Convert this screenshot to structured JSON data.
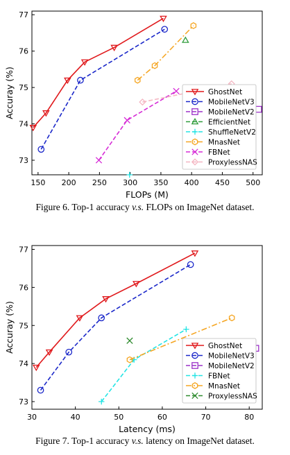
{
  "captions": {
    "fig6": {
      "prefix": "Figure 6. Top-1 accuracy ",
      "vs": "v.s.",
      "suffix": " FLOPs on ImageNet dataset."
    },
    "fig7": {
      "prefix": "Figure 7. Top-1 accuracy ",
      "vs": "v.s.",
      "suffix": " latency on ImageNet dataset."
    }
  },
  "chart_data": [
    {
      "id": "fig6",
      "type": "line",
      "xlabel": "FLOPs (M)",
      "ylabel": "Accuray (%)",
      "xlim": [
        140,
        515
      ],
      "ylim": [
        72.6,
        77.1
      ],
      "xticks": [
        150,
        200,
        250,
        300,
        350,
        400,
        450,
        500
      ],
      "yticks": [
        73,
        74,
        75,
        76,
        77
      ],
      "grid": false,
      "legend": "lower-right",
      "series": [
        {
          "name": "GhostNet",
          "color": "#e0191c",
          "dash": "",
          "marker": "triangle-down",
          "x": [
            142,
            163,
            198,
            226,
            274,
            354
          ],
          "y": [
            73.9,
            74.3,
            75.2,
            75.7,
            76.1,
            76.9
          ]
        },
        {
          "name": "MobileNetV3",
          "color": "#1a27c9",
          "dash": "6 3",
          "marker": "circle",
          "x": [
            155,
            219,
            356
          ],
          "y": [
            73.3,
            75.2,
            76.6
          ]
        },
        {
          "name": "MobileNetV2",
          "color": "#9b30c8",
          "dash": "6 3",
          "marker": "square",
          "x": [
            509
          ],
          "y": [
            74.4
          ]
        },
        {
          "name": "EfficientNet",
          "color": "#2e9b3a",
          "dash": "6 3",
          "marker": "triangle-up",
          "x": [
            390
          ],
          "y": [
            76.3
          ]
        },
        {
          "name": "ShuffleNetV2",
          "color": "#22e4e4",
          "dash": "6 3",
          "marker": "plus",
          "x": [
            299
          ],
          "y": [
            72.6
          ]
        },
        {
          "name": "MnasNet",
          "color": "#f5a623",
          "dash": "8 3 2 3",
          "marker": "hexagon",
          "x": [
            312,
            340,
            403
          ],
          "y": [
            75.2,
            75.6,
            76.7
          ]
        },
        {
          "name": "FBNet",
          "color": "#d62bd6",
          "dash": "6 3",
          "marker": "x",
          "x": [
            249,
            295,
            375
          ],
          "y": [
            73.0,
            74.1,
            74.9
          ]
        },
        {
          "name": "ProxylessNAS",
          "color": "#f4b6c2",
          "dash": "6 3",
          "marker": "diamond",
          "x": [
            320,
            465
          ],
          "y": [
            74.6,
            75.1
          ]
        }
      ]
    },
    {
      "id": "fig7",
      "type": "line",
      "xlabel": "Latency (ms)",
      "ylabel": "Accuray (%)",
      "xlim": [
        30,
        83
      ],
      "ylim": [
        72.8,
        77.1
      ],
      "xticks": [
        30,
        40,
        50,
        60,
        70,
        80
      ],
      "yticks": [
        73,
        74,
        75,
        76,
        77
      ],
      "grid": false,
      "legend": "lower-right",
      "series": [
        {
          "name": "GhostNet",
          "color": "#e0191c",
          "dash": "",
          "marker": "triangle-down",
          "x": [
            31,
            34,
            41,
            47,
            54,
            67.5
          ],
          "y": [
            73.9,
            74.3,
            75.2,
            75.7,
            76.1,
            76.9
          ]
        },
        {
          "name": "MobileNetV3",
          "color": "#1a27c9",
          "dash": "6 3",
          "marker": "circle",
          "x": [
            32,
            38.5,
            46,
            66.5
          ],
          "y": [
            73.3,
            74.3,
            75.2,
            76.6
          ]
        },
        {
          "name": "MobileNetV2",
          "color": "#9b30c8",
          "dash": "6 3",
          "marker": "square",
          "x": [
            81.5
          ],
          "y": [
            74.4
          ]
        },
        {
          "name": "FBNet",
          "color": "#22e4e4",
          "dash": "6 3",
          "marker": "plus",
          "x": [
            46,
            53.5,
            65.5
          ],
          "y": [
            73.0,
            74.1,
            74.9
          ]
        },
        {
          "name": "MnasNet",
          "color": "#f5a623",
          "dash": "8 3 2 3",
          "marker": "hexagon",
          "x": [
            52.5,
            76
          ],
          "y": [
            74.1,
            75.2
          ]
        },
        {
          "name": "ProxylessNAS",
          "color": "#2e8b2e",
          "dash": "6 3",
          "marker": "x",
          "x": [
            52.5
          ],
          "y": [
            74.6
          ]
        }
      ]
    }
  ]
}
